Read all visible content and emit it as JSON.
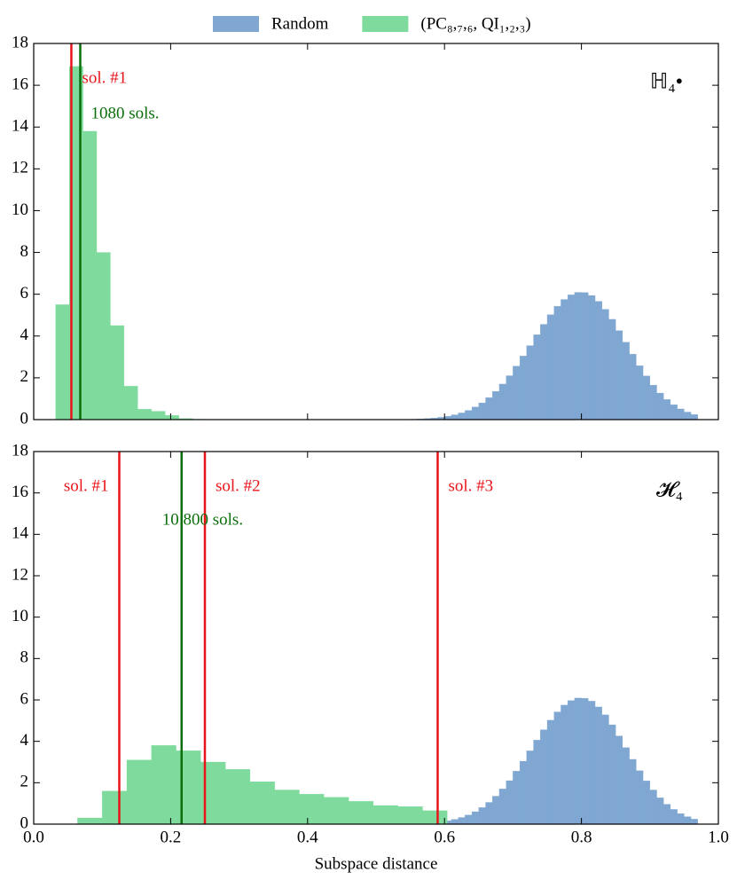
{
  "chart_data": [
    {
      "type": "histogram",
      "xlim": [
        0,
        1
      ],
      "xticks": [
        0,
        0.2,
        0.4,
        0.6,
        0.8,
        1
      ],
      "ylim": [
        0,
        18
      ],
      "yticks": [
        0,
        2,
        4,
        6,
        8,
        10,
        12,
        14,
        16,
        18
      ],
      "label": "ℍ₄•",
      "series": [
        {
          "name": "Random",
          "color": "#7fa7d2",
          "bins": [
            0.55,
            0.56,
            0.57,
            0.58,
            0.59,
            0.6,
            0.61,
            0.62,
            0.63,
            0.64,
            0.65,
            0.66,
            0.67,
            0.68,
            0.69,
            0.7,
            0.71,
            0.72,
            0.73,
            0.74,
            0.75,
            0.76,
            0.77,
            0.78,
            0.79,
            0.8,
            0.81,
            0.82,
            0.83,
            0.84,
            0.85,
            0.86,
            0.87,
            0.88,
            0.89,
            0.9,
            0.91,
            0.92,
            0.93,
            0.94,
            0.95,
            0.96,
            0.97
          ],
          "values": [
            0.02,
            0.03,
            0.05,
            0.07,
            0.11,
            0.16,
            0.23,
            0.32,
            0.44,
            0.6,
            0.8,
            1.05,
            1.35,
            1.7,
            2.1,
            2.56,
            3.04,
            3.54,
            4.06,
            4.56,
            5.02,
            5.42,
            5.75,
            5.97,
            6.09,
            6.08,
            5.94,
            5.66,
            5.28,
            4.8,
            4.26,
            3.7,
            3.13,
            2.58,
            2.09,
            1.65,
            1.27,
            0.96,
            0.71,
            0.51,
            0.36,
            0.24
          ]
        },
        {
          "name": "(PC₈,₇,₆, QI₁,₂,₃)",
          "color": "#7fdb9d",
          "bins": [
            0.032,
            0.052,
            0.072,
            0.092,
            0.112,
            0.132,
            0.152,
            0.172,
            0.192,
            0.212,
            0.232,
            0.252
          ],
          "values": [
            5.5,
            16.9,
            13.8,
            8.0,
            4.5,
            1.6,
            0.5,
            0.4,
            0.2,
            0.05,
            0.02
          ]
        }
      ],
      "lines": [
        {
          "x": 0.055,
          "color": "#e8141a",
          "label": "sol. #1"
        },
        {
          "x": 0.068,
          "color": "#0a6e0a",
          "label": "1080 sols."
        }
      ]
    },
    {
      "type": "histogram",
      "xlim": [
        0,
        1
      ],
      "xticks": [
        {
          "value": 0,
          "label": "0.0"
        },
        0.2,
        0.4,
        0.6,
        0.8,
        {
          "value": 1,
          "label": "1.0"
        }
      ],
      "ylim": [
        0,
        18
      ],
      "yticks": [
        0,
        2,
        4,
        6,
        8,
        10,
        12,
        14,
        16,
        18
      ],
      "xlabel": "Subspace distance",
      "label": "𝓗₄",
      "series": [
        {
          "color": "#7fa7d2",
          "bins": [
            0.55,
            0.56,
            0.57,
            0.58,
            0.59,
            0.6,
            0.61,
            0.62,
            0.63,
            0.64,
            0.65,
            0.66,
            0.67,
            0.68,
            0.69,
            0.7,
            0.71,
            0.72,
            0.73,
            0.74,
            0.75,
            0.76,
            0.77,
            0.78,
            0.79,
            0.8,
            0.81,
            0.82,
            0.83,
            0.84,
            0.85,
            0.86,
            0.87,
            0.88,
            0.89,
            0.9,
            0.91,
            0.92,
            0.93,
            0.94,
            0.95,
            0.96,
            0.97
          ],
          "values": [
            0.02,
            0.03,
            0.05,
            0.07,
            0.11,
            0.16,
            0.23,
            0.32,
            0.44,
            0.6,
            0.8,
            1.05,
            1.35,
            1.7,
            2.1,
            2.56,
            3.04,
            3.54,
            4.06,
            4.56,
            5.02,
            5.42,
            5.75,
            5.97,
            6.09,
            6.08,
            5.94,
            5.66,
            5.28,
            4.8,
            4.26,
            3.7,
            3.13,
            2.58,
            2.09,
            1.65,
            1.27,
            0.96,
            0.71,
            0.51,
            0.36,
            0.24
          ]
        },
        {
          "color": "#7fdb9d",
          "bins": [
            0.064,
            0.1,
            0.136,
            0.172,
            0.208,
            0.244,
            0.28,
            0.316,
            0.352,
            0.388,
            0.424,
            0.46,
            0.496,
            0.532,
            0.568,
            0.604
          ],
          "values": [
            0.3,
            1.6,
            3.1,
            3.8,
            3.55,
            3.0,
            2.65,
            2.05,
            1.65,
            1.45,
            1.3,
            1.1,
            0.9,
            0.85,
            0.65
          ]
        }
      ],
      "lines": [
        {
          "x": 0.125,
          "color": "#e8141a",
          "label": "sol. #1"
        },
        {
          "x": 0.25,
          "color": "#e8141a",
          "label": "sol. #2"
        },
        {
          "x": 0.59,
          "color": "#e8141a",
          "label": "sol. #3"
        },
        {
          "x": 0.216,
          "color": "#0a6e0a",
          "label": "10 800 sols."
        }
      ]
    }
  ]
}
